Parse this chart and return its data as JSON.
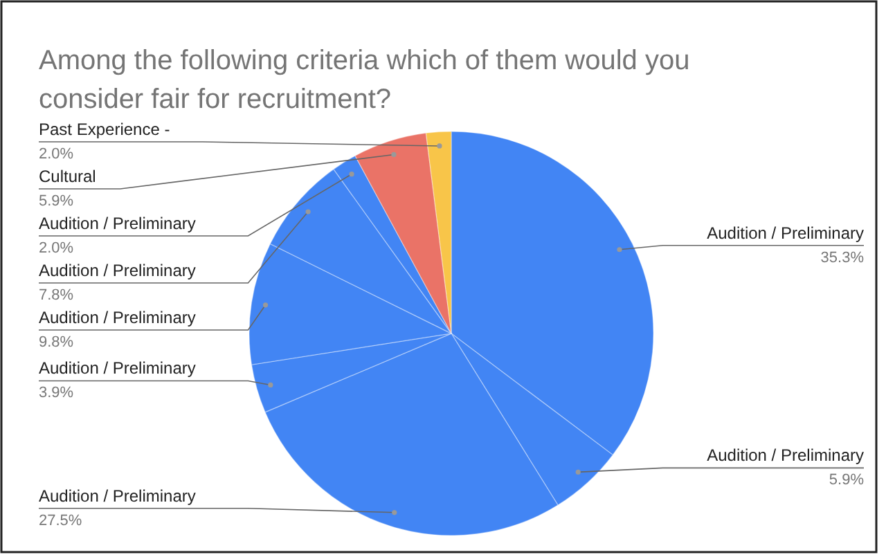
{
  "chart_data": {
    "type": "pie",
    "title": "Among the following criteria which of them would you consider fair for recruitment?",
    "categories": [
      "Audition / Preliminary",
      "Audition / Preliminary",
      "Audition / Preliminary",
      "Audition / Preliminary",
      "Audition / Preliminary",
      "Audition / Preliminary",
      "Audition / Preliminary",
      "Cultural",
      "Past Experience -"
    ],
    "values": [
      35.3,
      5.9,
      27.5,
      3.9,
      9.8,
      7.8,
      2.0,
      5.9,
      2.0
    ],
    "value_labels": [
      "35.3%",
      "5.9%",
      "27.5%",
      "3.9%",
      "9.8%",
      "7.8%",
      "2.0%",
      "5.9%",
      "2.0%"
    ],
    "colors": [
      "#4285f4",
      "#4285f4",
      "#4285f4",
      "#4285f4",
      "#4285f4",
      "#4285f4",
      "#4285f4",
      "#ea7367",
      "#f8c549"
    ],
    "legend": false
  }
}
